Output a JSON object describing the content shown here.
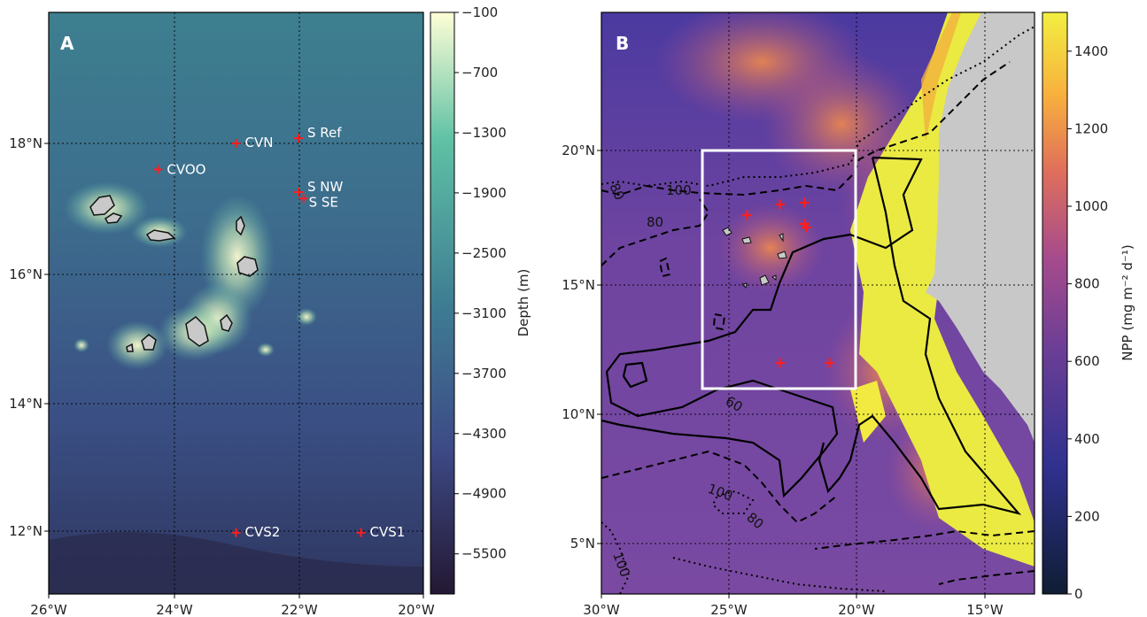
{
  "panels": [
    {
      "letter": "A",
      "x_ticks": [
        "26°W",
        "24°W",
        "22°W",
        "20°W"
      ],
      "y_ticks": [
        "18°N",
        "16°N",
        "14°N",
        "12°N"
      ],
      "stations": [
        {
          "name": "CVN",
          "lon": -23.0,
          "lat": 18.0
        },
        {
          "name": "S Ref",
          "lon": -22.0,
          "lat": 18.08
        },
        {
          "name": "CVOO",
          "lon": -24.25,
          "lat": 17.6
        },
        {
          "name": "S NW",
          "lon": -22.0,
          "lat": 17.25
        },
        {
          "name": "S SE",
          "lon": -21.92,
          "lat": 17.15
        },
        {
          "name": "CVS2",
          "lon": -23.0,
          "lat": 12.0
        },
        {
          "name": "CVS1",
          "lon": -21.0,
          "lat": 12.0
        }
      ],
      "colorbar": {
        "label": "Depth (m)",
        "ticks": [
          "−100",
          "−700",
          "−1300",
          "−1900",
          "−2500",
          "−3100",
          "−3700",
          "−4300",
          "−4900",
          "−5500"
        ],
        "range": [
          -5900,
          -100
        ],
        "colors": [
          "#fefed6",
          "#5fc1a5",
          "#3d5f96",
          "#241833"
        ]
      }
    },
    {
      "letter": "B",
      "x_ticks": [
        "30°W",
        "25°W",
        "20°W",
        "15°W"
      ],
      "y_ticks": [
        "20°N",
        "15°N",
        "10°N",
        "5°N"
      ],
      "contour_labels": [
        "100",
        "80",
        "60",
        "100",
        "80",
        "100",
        "100"
      ],
      "colorbar": {
        "label": "NPP (mg m⁻² d⁻¹)",
        "ticks": [
          "0",
          "200",
          "400",
          "600",
          "800",
          "1000",
          "1200",
          "1400"
        ],
        "range": [
          0,
          1500
        ],
        "colors": [
          "#0f1d33",
          "#3d2f96",
          "#8b4796",
          "#e07057",
          "#f2ea40"
        ]
      },
      "box_color": "#ffffff"
    }
  ]
}
